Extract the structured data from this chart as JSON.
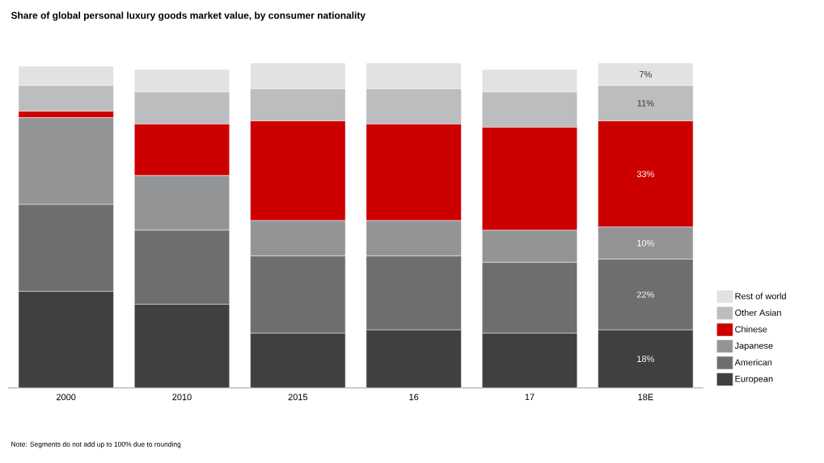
{
  "chart_data": {
    "type": "bar",
    "stacked": true,
    "title": "Share of global personal luxury goods market value, by consumer nationality",
    "categories": [
      "2000",
      "2010",
      "2015",
      "16",
      "17",
      "18E"
    ],
    "ylim": [
      0,
      101
    ],
    "tick_labels": "x",
    "legend": "right",
    "series": [
      {
        "name": "European",
        "color": "#404042",
        "values": [
          30,
          26,
          17,
          18,
          17,
          18
        ],
        "value_labels": [
          null,
          null,
          null,
          null,
          null,
          "18%"
        ]
      },
      {
        "name": "American",
        "color": "#6d6e70",
        "values": [
          27,
          23,
          24,
          23,
          22,
          22
        ],
        "value_labels": [
          null,
          null,
          null,
          null,
          null,
          "22%"
        ]
      },
      {
        "name": "Japanese",
        "color": "#939496",
        "values": [
          27,
          17,
          11,
          11,
          10,
          10
        ],
        "value_labels": [
          null,
          null,
          null,
          null,
          null,
          "10%"
        ]
      },
      {
        "name": "Chinese",
        "color": "#cc0000",
        "values": [
          2,
          16,
          31,
          30,
          32,
          33
        ],
        "value_labels": [
          null,
          null,
          null,
          null,
          null,
          "33%"
        ]
      },
      {
        "name": "Other Asian",
        "color": "#bcbdbe",
        "values": [
          8,
          10,
          10,
          11,
          11,
          11
        ],
        "value_labels": [
          null,
          null,
          null,
          null,
          null,
          "11%"
        ]
      },
      {
        "name": "Rest of world",
        "color": "#e2e2e2",
        "values": [
          6,
          7,
          8,
          8,
          7,
          7
        ],
        "value_labels": [
          null,
          null,
          null,
          null,
          null,
          "7%"
        ]
      }
    ],
    "annotations": [
      "Note: Segments do not add up to 100% due to rounding"
    ]
  }
}
